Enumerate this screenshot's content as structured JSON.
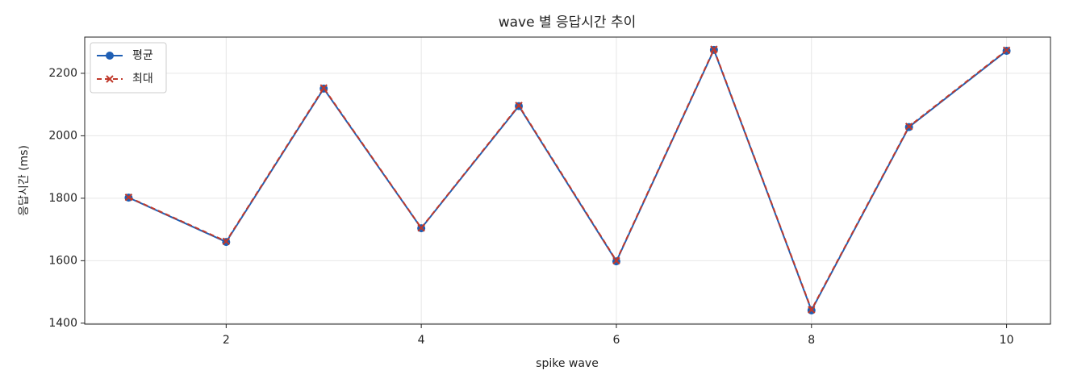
{
  "chart_data": {
    "type": "line",
    "title": "wave 별 응답시간 추이",
    "x_label": "spike wave",
    "y_label": "응답시간 (ms)",
    "x": [
      1,
      2,
      3,
      4,
      5,
      6,
      7,
      8,
      9,
      10
    ],
    "series": [
      {
        "name": "평균",
        "color": "#1f5fb4",
        "marker": "o",
        "linestyle": "solid",
        "values": [
          1802,
          1660,
          2151,
          1704,
          2095,
          1598,
          2275,
          1441,
          2028,
          2272
        ]
      },
      {
        "name": "최대",
        "color": "#c0392b",
        "marker": "x",
        "linestyle": "dashed",
        "values": [
          1803,
          1662,
          2153,
          1705,
          2097,
          1600,
          2277,
          1443,
          2030,
          2274
        ]
      }
    ],
    "xlim": [
      0.55,
      10.45
    ],
    "ylim": [
      1397,
      2316
    ],
    "xticks": [
      2,
      4,
      6,
      8,
      10
    ],
    "yticks": [
      1400,
      1600,
      1800,
      2000,
      2200
    ],
    "grid": true,
    "legend": "upper-left"
  }
}
